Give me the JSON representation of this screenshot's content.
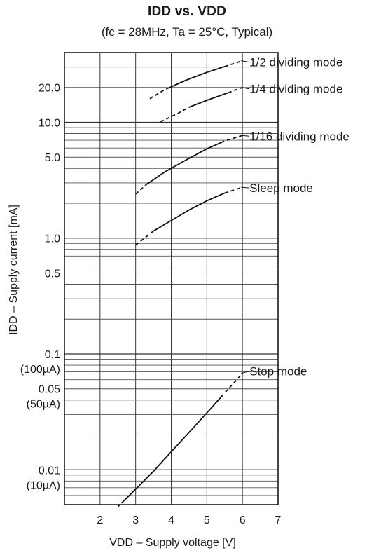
{
  "chart_data": {
    "type": "line",
    "title": "IDD vs. VDD",
    "subtitle": "(fc = 28MHz, Ta = 25°C, Typical)",
    "xlabel": "VDD – Supply voltage [V]",
    "ylabel": "IDD – Supply current [mA]",
    "x_scale": "linear",
    "y_scale": "log",
    "xlim": [
      1,
      7
    ],
    "ylim": [
      0.005,
      40
    ],
    "grid": true,
    "legend": "none",
    "x_ticks": [
      "2",
      "3",
      "4",
      "5",
      "6",
      "7"
    ],
    "y_ticks": [
      {
        "value": 20,
        "label": "20.0"
      },
      {
        "value": 10,
        "label": "10.0"
      },
      {
        "value": 5,
        "label": "5.0"
      },
      {
        "value": 1,
        "label": "1.0"
      },
      {
        "value": 0.5,
        "label": "0.5"
      },
      {
        "value": 0.1,
        "label": "0.1",
        "sublabel": "(100µA)"
      },
      {
        "value": 0.05,
        "label": "0.05",
        "sublabel": "(50µA)"
      },
      {
        "value": 0.01,
        "label": "0.01",
        "sublabel": "(10µA)"
      }
    ],
    "series": [
      {
        "name": "1/2 dividing mode",
        "x": [
          3.4,
          3.8,
          4.4,
          5.0,
          5.6,
          6.0
        ],
        "y": [
          16,
          19,
          23,
          27,
          31,
          34
        ],
        "solid_range": [
          3.9,
          5.5
        ]
      },
      {
        "name": "1/4 dividing mode",
        "x": [
          3.7,
          4.2,
          4.5,
          5.0,
          5.6,
          6.0
        ],
        "y": [
          10.1,
          12,
          13.5,
          15.5,
          18,
          20
        ],
        "solid_range": [
          4.5,
          5.6
        ]
      },
      {
        "name": "1/16 dividing mode",
        "x": [
          3.0,
          3.3,
          3.8,
          4.4,
          5.0,
          5.5,
          6.0
        ],
        "y": [
          2.4,
          2.9,
          3.7,
          4.7,
          5.9,
          6.9,
          7.7
        ],
        "solid_range": [
          3.3,
          5.4
        ]
      },
      {
        "name": "Sleep mode",
        "x": [
          3.0,
          3.5,
          4.0,
          4.5,
          5.0,
          5.5,
          6.0
        ],
        "y": [
          0.87,
          1.15,
          1.42,
          1.75,
          2.1,
          2.45,
          2.75
        ],
        "solid_range": [
          3.5,
          5.5
        ]
      },
      {
        "name": "Stop mode",
        "x": [
          2.5,
          3.0,
          3.5,
          4.0,
          4.5,
          5.0,
          5.5,
          6.0
        ],
        "y": [
          0.0048,
          0.0068,
          0.0097,
          0.0143,
          0.021,
          0.031,
          0.046,
          0.068
        ],
        "solid_range": [
          2.6,
          5.4
        ]
      }
    ]
  }
}
